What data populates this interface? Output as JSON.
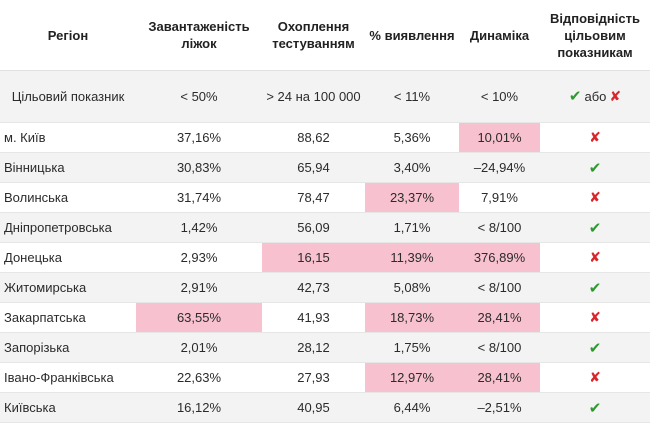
{
  "headers": {
    "region": "Регіон",
    "beds": "Завантаженість ліжок",
    "testing": "Охоплення тестуванням",
    "detection": "% виявлення",
    "dynamics": "Динаміка",
    "compliance": "Відповідність цільовим показникам"
  },
  "target": {
    "region": "Цільовий показник",
    "beds": "< 50%",
    "testing": "> 24 на 100 000",
    "detection": "< 11%",
    "dynamics": "< 10%",
    "or_label": "або"
  },
  "icons": {
    "ok": "✔",
    "bad": "✘"
  },
  "colors": {
    "highlight": "#f8c1cf",
    "ok": "#2c9a2c",
    "bad": "#d8262c",
    "zebra": "#f3f3f3"
  },
  "rows": [
    {
      "region": "м. Київ",
      "beds": "37,16%",
      "testing": "88,62",
      "detection": "5,36%",
      "dynamics": "10,01%",
      "status": "bad",
      "hl": [
        "dynamics"
      ]
    },
    {
      "region": "Вінницька",
      "beds": "30,83%",
      "testing": "65,94",
      "detection": "3,40%",
      "dynamics": "–24,94%",
      "status": "ok",
      "hl": []
    },
    {
      "region": "Волинська",
      "beds": "31,74%",
      "testing": "78,47",
      "detection": "23,37%",
      "dynamics": "7,91%",
      "status": "bad",
      "hl": [
        "detection"
      ]
    },
    {
      "region": "Дніпропетровська",
      "beds": "1,42%",
      "testing": "56,09",
      "detection": "1,71%",
      "dynamics": "< 8/100",
      "status": "ok",
      "hl": []
    },
    {
      "region": "Донецька",
      "beds": "2,93%",
      "testing": "16,15",
      "detection": "11,39%",
      "dynamics": "376,89%",
      "status": "bad",
      "hl": [
        "testing",
        "detection",
        "dynamics"
      ]
    },
    {
      "region": "Житомирська",
      "beds": "2,91%",
      "testing": "42,73",
      "detection": "5,08%",
      "dynamics": "< 8/100",
      "status": "ok",
      "hl": []
    },
    {
      "region": "Закарпатська",
      "beds": "63,55%",
      "testing": "41,93",
      "detection": "18,73%",
      "dynamics": "28,41%",
      "status": "bad",
      "hl": [
        "beds",
        "detection",
        "dynamics"
      ]
    },
    {
      "region": "Запорізька",
      "beds": "2,01%",
      "testing": "28,12",
      "detection": "1,75%",
      "dynamics": "< 8/100",
      "status": "ok",
      "hl": []
    },
    {
      "region": "Івано-Франківська",
      "beds": "22,63%",
      "testing": "27,93",
      "detection": "12,97%",
      "dynamics": "28,41%",
      "status": "bad",
      "hl": [
        "detection",
        "dynamics"
      ]
    },
    {
      "region": "Київська",
      "beds": "16,12%",
      "testing": "40,95",
      "detection": "6,44%",
      "dynamics": "–2,51%",
      "status": "ok",
      "hl": []
    }
  ]
}
